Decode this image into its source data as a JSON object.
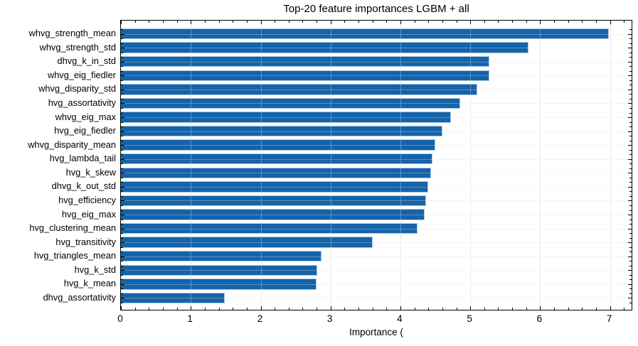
{
  "chart_data": {
    "type": "bar",
    "orientation": "horizontal",
    "title": "Top-20 feature importances LGBM + all",
    "xlabel": "Importance (",
    "categories": [
      "whvg_strength_mean",
      "whvg_strength_std",
      "dhvg_k_in_std",
      "whvg_eig_fiedler",
      "whvg_disparity_std",
      "hvg_assortativity",
      "whvg_eig_max",
      "hvg_eig_fiedler",
      "whvg_disparity_mean",
      "hvg_lambda_tail",
      "hvg_k_skew",
      "dhvg_k_out_std",
      "hvg_efficiency",
      "hvg_eig_max",
      "hvg_clustering_mean",
      "hvg_transitivity",
      "hvg_triangles_mean",
      "hvg_k_std",
      "hvg_k_mean",
      "dhvg_assortativity"
    ],
    "values": [
      6.98,
      5.83,
      5.27,
      5.27,
      5.1,
      4.86,
      4.72,
      4.6,
      4.5,
      4.46,
      4.44,
      4.4,
      4.37,
      4.35,
      4.24,
      3.6,
      2.87,
      2.81,
      2.8,
      1.49
    ],
    "xticks": [
      0,
      1,
      2,
      3,
      4,
      5,
      6,
      7
    ],
    "xlim": [
      0,
      7.33
    ],
    "grid": true,
    "legend": null,
    "bar_color": "#1563a9",
    "bar_edge_color": "#a9c6e4"
  }
}
